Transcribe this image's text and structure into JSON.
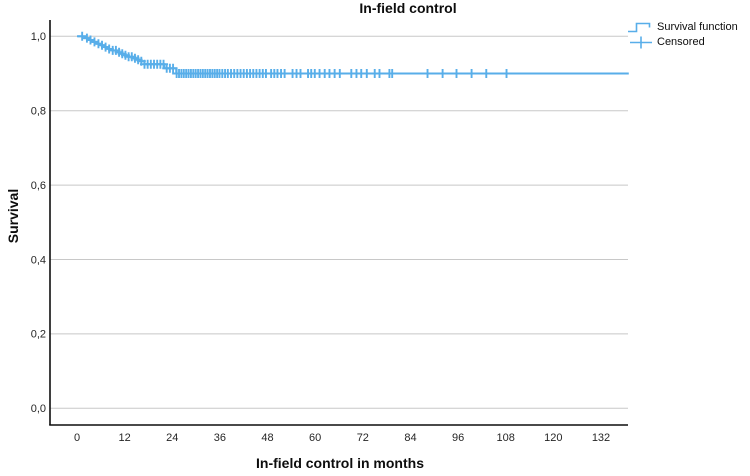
{
  "legend": {
    "items": [
      {
        "label": "Survival function",
        "icon": "step-line-icon"
      },
      {
        "label": "Censored",
        "icon": "plus-icon"
      }
    ]
  },
  "chart_data": {
    "type": "line",
    "subtype": "kaplan_meier_step",
    "title": "In-field control",
    "xlabel": "In-field control in months",
    "ylabel": "Survival",
    "x_ticks": [
      0,
      12,
      24,
      36,
      48,
      60,
      72,
      84,
      96,
      108,
      120,
      132
    ],
    "y_tick_labels": [
      "1,0",
      "0,8",
      "0,6",
      "0,4",
      "0,2",
      "0,0"
    ],
    "y_tick_values": [
      1.0,
      0.8,
      0.6,
      0.4,
      0.2,
      0.0
    ],
    "xlim": [
      -7,
      139
    ],
    "ylim": [
      -0.05,
      1.04
    ],
    "grid": "horizontal",
    "legend_position": "top-right",
    "colors": {
      "line": "#58AEE9",
      "grid": "#c8c8c8",
      "axis": "#0f0f0f",
      "tick_text": "#262626"
    },
    "series": [
      {
        "name": "Survival function",
        "style": "step",
        "color": "#58AEE9",
        "end_x": 139,
        "steps": [
          [
            0,
            1.0
          ],
          [
            2,
            0.995
          ],
          [
            3,
            0.99
          ],
          [
            4,
            0.985
          ],
          [
            5,
            0.98
          ],
          [
            6,
            0.976
          ],
          [
            7,
            0.971
          ],
          [
            8,
            0.966
          ],
          [
            9,
            0.962
          ],
          [
            10,
            0.957
          ],
          [
            11,
            0.953
          ],
          [
            12,
            0.949
          ],
          [
            13,
            0.945
          ],
          [
            14,
            0.941
          ],
          [
            15,
            0.937
          ],
          [
            16,
            0.933
          ],
          [
            17,
            0.925
          ],
          [
            22,
            0.914
          ],
          [
            25,
            0.9
          ]
        ]
      }
    ],
    "censored": {
      "name": "Censored",
      "marker": "plus",
      "color": "#58AEE9",
      "times": [
        1.3,
        2.5,
        3.4,
        4.4,
        5.4,
        6.3,
        7.2,
        8.1,
        9.0,
        9.8,
        10.6,
        11.4,
        12.2,
        13.0,
        13.8,
        14.6,
        15.4,
        16.2,
        17.0,
        17.8,
        18.6,
        19.4,
        20.2,
        21.0,
        21.8,
        22.6,
        23.4,
        24.2,
        25.1,
        25.7,
        26.3,
        26.9,
        27.5,
        28.1,
        28.7,
        29.3,
        29.9,
        30.5,
        31.1,
        31.7,
        32.3,
        32.9,
        33.5,
        34.1,
        34.7,
        35.3,
        35.9,
        36.6,
        37.3,
        38.0,
        38.8,
        39.6,
        40.4,
        41.2,
        42.0,
        42.8,
        43.6,
        44.4,
        45.2,
        46.0,
        46.8,
        47.6,
        48.9,
        49.7,
        50.5,
        51.4,
        52.3,
        54.3,
        55.3,
        56.3,
        58.2,
        59.0,
        59.9,
        61.1,
        62.4,
        63.6,
        64.9,
        66.2,
        69.1,
        70.4,
        71.6,
        73.0,
        75.0,
        76.2,
        78.7,
        79.4,
        88.3,
        92.1,
        95.6,
        99.4,
        103.1,
        108.2
      ]
    }
  }
}
